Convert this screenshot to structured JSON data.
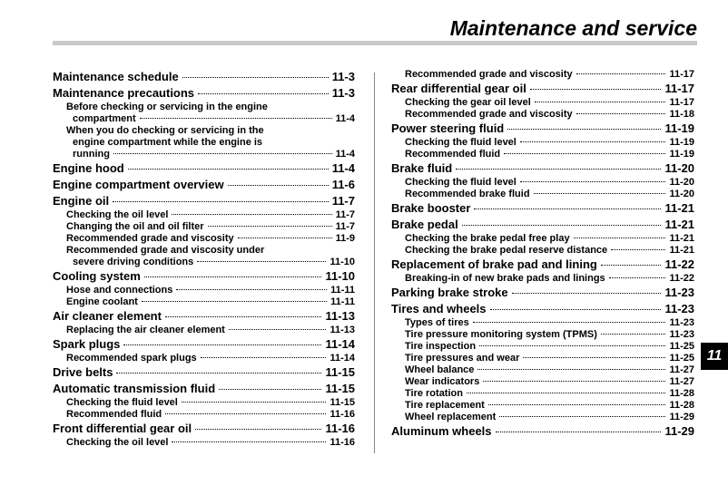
{
  "header": {
    "title": "Maintenance and service"
  },
  "tab": "11",
  "columns": [
    {
      "entries": [
        {
          "level": 1,
          "lines": [
            "Maintenance schedule"
          ],
          "page": "11-3"
        },
        {
          "level": 1,
          "lines": [
            "Maintenance precautions"
          ],
          "page": "11-3"
        },
        {
          "level": 2,
          "lines": [
            "Before checking or servicing in the engine",
            "compartment"
          ],
          "page": "11-4"
        },
        {
          "level": 2,
          "lines": [
            "When you do checking or servicing in the",
            "engine compartment while the engine is",
            "running"
          ],
          "page": "11-4"
        },
        {
          "level": 1,
          "lines": [
            "Engine hood"
          ],
          "page": "11-4"
        },
        {
          "level": 1,
          "lines": [
            "Engine compartment overview"
          ],
          "page": "11-6"
        },
        {
          "level": 1,
          "lines": [
            "Engine oil"
          ],
          "page": "11-7"
        },
        {
          "level": 2,
          "lines": [
            "Checking the oil level"
          ],
          "page": "11-7"
        },
        {
          "level": 2,
          "lines": [
            "Changing the oil and oil filter"
          ],
          "page": "11-7"
        },
        {
          "level": 2,
          "lines": [
            "Recommended grade and viscosity"
          ],
          "page": "11-9"
        },
        {
          "level": 2,
          "lines": [
            "Recommended grade and viscosity under",
            "severe driving conditions"
          ],
          "page": "11-10"
        },
        {
          "level": 1,
          "lines": [
            "Cooling system"
          ],
          "page": "11-10"
        },
        {
          "level": 2,
          "lines": [
            "Hose and connections"
          ],
          "page": "11-11"
        },
        {
          "level": 2,
          "lines": [
            "Engine coolant"
          ],
          "page": "11-11"
        },
        {
          "level": 1,
          "lines": [
            "Air cleaner element"
          ],
          "page": "11-13"
        },
        {
          "level": 2,
          "lines": [
            "Replacing the air cleaner element"
          ],
          "page": "11-13"
        },
        {
          "level": 1,
          "lines": [
            "Spark plugs"
          ],
          "page": "11-14"
        },
        {
          "level": 2,
          "lines": [
            "Recommended spark plugs"
          ],
          "page": "11-14"
        },
        {
          "level": 1,
          "lines": [
            "Drive belts"
          ],
          "page": "11-15"
        },
        {
          "level": 1,
          "lines": [
            "Automatic transmission fluid"
          ],
          "page": "11-15"
        },
        {
          "level": 2,
          "lines": [
            "Checking the fluid level"
          ],
          "page": "11-15"
        },
        {
          "level": 2,
          "lines": [
            "Recommended fluid"
          ],
          "page": "11-16"
        },
        {
          "level": 1,
          "lines": [
            "Front differential gear oil"
          ],
          "page": "11-16"
        },
        {
          "level": 2,
          "lines": [
            "Checking the oil level"
          ],
          "page": "11-16"
        }
      ]
    },
    {
      "entries": [
        {
          "level": 2,
          "lines": [
            "Recommended grade and viscosity"
          ],
          "page": "11-17"
        },
        {
          "level": 1,
          "lines": [
            "Rear differential gear oil"
          ],
          "page": "11-17"
        },
        {
          "level": 2,
          "lines": [
            "Checking the gear oil level"
          ],
          "page": "11-17"
        },
        {
          "level": 2,
          "lines": [
            "Recommended grade and viscosity"
          ],
          "page": "11-18"
        },
        {
          "level": 1,
          "lines": [
            "Power steering fluid"
          ],
          "page": "11-19"
        },
        {
          "level": 2,
          "lines": [
            "Checking the fluid level"
          ],
          "page": "11-19"
        },
        {
          "level": 2,
          "lines": [
            "Recommended fluid"
          ],
          "page": "11-19"
        },
        {
          "level": 1,
          "lines": [
            "Brake fluid"
          ],
          "page": "11-20"
        },
        {
          "level": 2,
          "lines": [
            "Checking the fluid level"
          ],
          "page": "11-20"
        },
        {
          "level": 2,
          "lines": [
            "Recommended brake fluid"
          ],
          "page": "11-20"
        },
        {
          "level": 1,
          "lines": [
            "Brake booster"
          ],
          "page": "11-21"
        },
        {
          "level": 1,
          "lines": [
            "Brake pedal"
          ],
          "page": "11-21"
        },
        {
          "level": 2,
          "lines": [
            "Checking the brake pedal free play"
          ],
          "page": "11-21"
        },
        {
          "level": 2,
          "lines": [
            "Checking the brake pedal reserve distance"
          ],
          "page": "11-21"
        },
        {
          "level": 1,
          "lines": [
            "Replacement of brake pad and lining"
          ],
          "page": "11-22"
        },
        {
          "level": 2,
          "lines": [
            "Breaking-in of new brake pads and linings"
          ],
          "page": "11-22"
        },
        {
          "level": 1,
          "lines": [
            "Parking brake stroke"
          ],
          "page": "11-23"
        },
        {
          "level": 1,
          "lines": [
            "Tires and wheels"
          ],
          "page": "11-23"
        },
        {
          "level": 2,
          "lines": [
            "Types of tires"
          ],
          "page": "11-23"
        },
        {
          "level": 2,
          "lines": [
            "Tire pressure monitoring system (TPMS)"
          ],
          "page": "11-23"
        },
        {
          "level": 2,
          "lines": [
            "Tire inspection"
          ],
          "page": "11-25"
        },
        {
          "level": 2,
          "lines": [
            "Tire pressures and wear"
          ],
          "page": "11-25"
        },
        {
          "level": 2,
          "lines": [
            "Wheel balance"
          ],
          "page": "11-27"
        },
        {
          "level": 2,
          "lines": [
            "Wear indicators"
          ],
          "page": "11-27"
        },
        {
          "level": 2,
          "lines": [
            "Tire rotation"
          ],
          "page": "11-28"
        },
        {
          "level": 2,
          "lines": [
            "Tire replacement"
          ],
          "page": "11-28"
        },
        {
          "level": 2,
          "lines": [
            "Wheel replacement"
          ],
          "page": "11-29"
        },
        {
          "level": 1,
          "lines": [
            "Aluminum wheels"
          ],
          "page": "11-29"
        }
      ]
    }
  ]
}
